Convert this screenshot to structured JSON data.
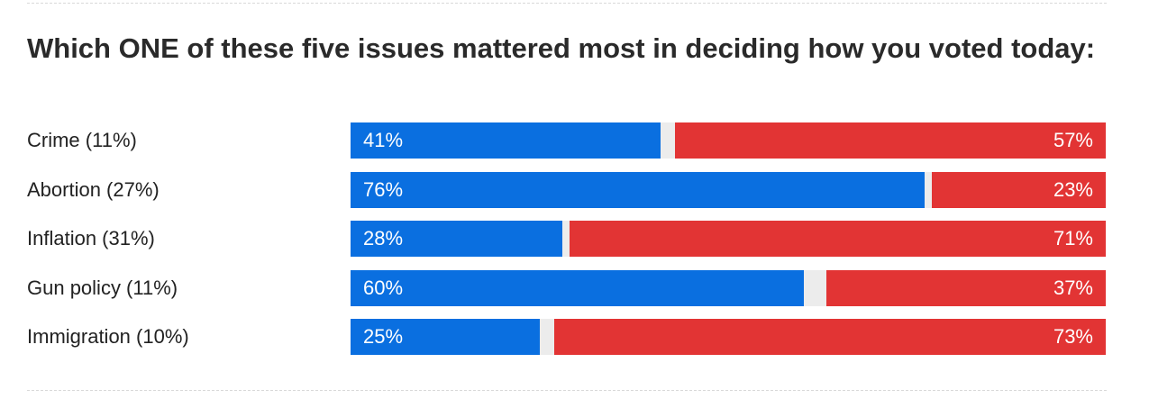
{
  "chart_data": {
    "type": "bar",
    "title": "Which ONE of these five issues mattered most in deciding how you voted today:",
    "xlim": [
      0,
      100
    ],
    "categories": [
      "Crime (11%)",
      "Abortion (27%)",
      "Inflation (31%)",
      "Gun policy (11%)",
      "Immigration (10%)"
    ],
    "series": [
      {
        "values": [
          41,
          76,
          28,
          60,
          25
        ],
        "labels": [
          "41%",
          "76%",
          "28%",
          "60%",
          "25%"
        ],
        "color": "#0a6fe0"
      },
      {
        "values": [
          57,
          23,
          71,
          37,
          73
        ],
        "labels": [
          "57%",
          "23%",
          "71%",
          "37%",
          "73%"
        ],
        "color": "#e23434"
      }
    ],
    "track_color": "#ececec",
    "grid": false,
    "legend": "none"
  }
}
